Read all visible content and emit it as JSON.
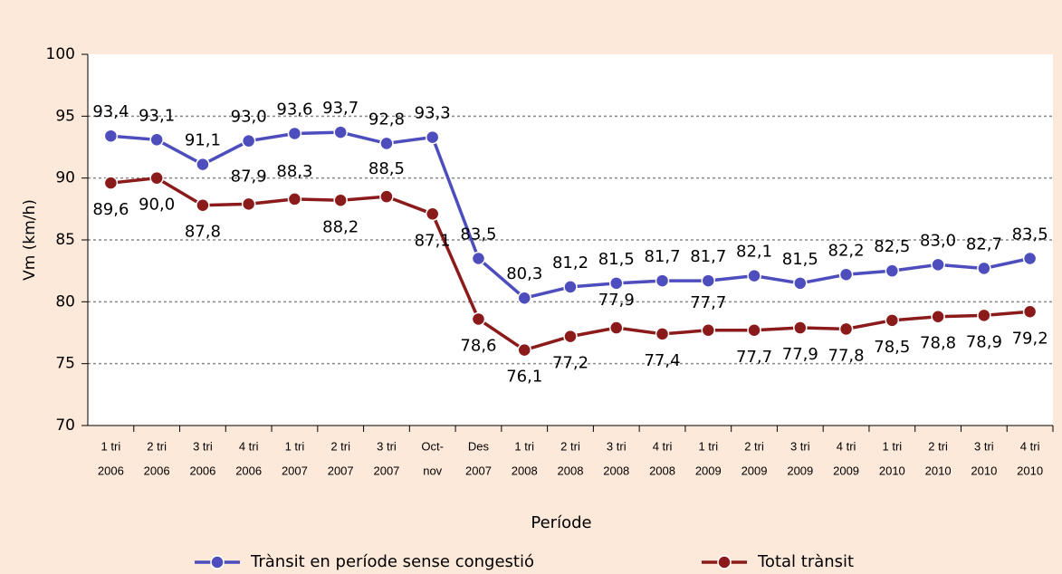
{
  "chart_data": {
    "type": "line",
    "x_label": "Període",
    "y_label": "Vm (km/h)",
    "categories": [
      [
        "1 tri",
        "2006"
      ],
      [
        "2 tri",
        "2006"
      ],
      [
        "3 tri",
        "2006"
      ],
      [
        "4 tri",
        "2006"
      ],
      [
        "1 tri",
        "2007"
      ],
      [
        "2 tri",
        "2007"
      ],
      [
        "3 tri",
        "2007"
      ],
      [
        "Oct-",
        "nov"
      ],
      [
        "Des",
        "2007"
      ],
      [
        "1 tri",
        "2008"
      ],
      [
        "2 tri",
        "2008"
      ],
      [
        "3 tri",
        "2008"
      ],
      [
        "4 tri",
        "2008"
      ],
      [
        "1 tri",
        "2009"
      ],
      [
        "2 tri",
        "2009"
      ],
      [
        "3 tri",
        "2009"
      ],
      [
        "4 tri",
        "2009"
      ],
      [
        "1 tri",
        "2010"
      ],
      [
        "2 tri",
        "2010"
      ],
      [
        "3 tri",
        "2010"
      ],
      [
        "4 tri",
        "2010"
      ]
    ],
    "series": [
      {
        "name": "Trànsit en període sense congestió",
        "color": "#4d4dbd",
        "values": [
          93.4,
          93.1,
          91.1,
          93.0,
          93.6,
          93.7,
          92.8,
          93.3,
          83.5,
          80.3,
          81.2,
          81.5,
          81.7,
          81.7,
          82.1,
          81.5,
          82.2,
          82.5,
          83.0,
          82.7,
          83.5
        ],
        "value_labels": [
          "93,4",
          "93,1",
          "91,1",
          "93,0",
          "93,6",
          "93,7",
          "92,8",
          "93,3",
          "83,5",
          "80,3",
          "81,2",
          "81,5",
          "81,7",
          "81,7",
          "82,1",
          "81,5",
          "82,2",
          "82,5",
          "83,0",
          "82,7",
          "83,5"
        ]
      },
      {
        "name": "Total trànsit",
        "color": "#8b1a1a",
        "values": [
          89.6,
          90.0,
          87.8,
          87.9,
          88.3,
          88.2,
          88.5,
          87.1,
          78.6,
          76.1,
          77.2,
          77.9,
          77.4,
          77.7,
          77.7,
          77.9,
          77.8,
          78.5,
          78.8,
          78.9,
          79.2
        ],
        "value_labels": [
          "89,6",
          "90,0",
          "87,8",
          "87,9",
          "88,3",
          "88,2",
          "88,5",
          "87,1",
          "78,6",
          "76,1",
          "77,2",
          "77,9",
          "77,4",
          "77,7",
          "77,7",
          "77,9",
          "77,8",
          "78,5",
          "78,8",
          "78,9",
          "79,2"
        ]
      }
    ],
    "ylim": [
      70,
      100
    ],
    "yticks": [
      70,
      75,
      80,
      85,
      90,
      95,
      100
    ],
    "grid": true,
    "legend": "bottom"
  }
}
